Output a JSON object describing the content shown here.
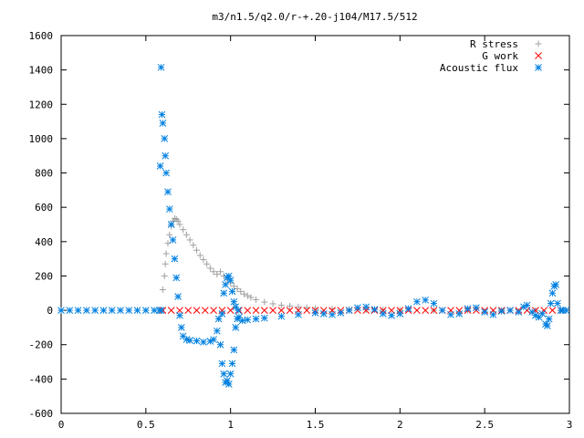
{
  "chart_data": {
    "type": "scatter",
    "title": "m3/n1.5/q2.0/r-+.20-j104/M17.5/512",
    "xlabel": "",
    "ylabel": "",
    "xlim": [
      0,
      3
    ],
    "ylim": [
      -600,
      1600
    ],
    "x_ticks": [
      "0",
      "0.5",
      "1",
      "1.5",
      "2",
      "2.5",
      "3"
    ],
    "x_tick_values": [
      0,
      0.5,
      1,
      1.5,
      2,
      2.5,
      3
    ],
    "y_ticks": [
      "-600",
      "-400",
      "-200",
      "0",
      "200",
      "400",
      "600",
      "800",
      "1000",
      "1200",
      "1400",
      "1600"
    ],
    "y_tick_values": [
      -600,
      -400,
      -200,
      0,
      200,
      400,
      600,
      800,
      1000,
      1200,
      1400,
      1600
    ],
    "grid": false,
    "legend_position": "top-right",
    "series": [
      {
        "name": "R stress",
        "marker": "plus",
        "color": "#a0a0a0",
        "points": [
          [
            0.6,
            120
          ],
          [
            0.61,
            200
          ],
          [
            0.615,
            270
          ],
          [
            0.62,
            330
          ],
          [
            0.63,
            390
          ],
          [
            0.64,
            440
          ],
          [
            0.65,
            490
          ],
          [
            0.66,
            520
          ],
          [
            0.67,
            535
          ],
          [
            0.68,
            530
          ],
          [
            0.69,
            520
          ],
          [
            0.7,
            500
          ],
          [
            0.72,
            470
          ],
          [
            0.74,
            440
          ],
          [
            0.76,
            410
          ],
          [
            0.78,
            380
          ],
          [
            0.8,
            350
          ],
          [
            0.82,
            320
          ],
          [
            0.84,
            295
          ],
          [
            0.86,
            270
          ],
          [
            0.88,
            245
          ],
          [
            0.9,
            225
          ],
          [
            0.92,
            210
          ],
          [
            0.94,
            225
          ],
          [
            0.96,
            200
          ],
          [
            0.98,
            180
          ],
          [
            1.0,
            160
          ],
          [
            1.02,
            140
          ],
          [
            1.04,
            125
          ],
          [
            1.06,
            110
          ],
          [
            1.08,
            95
          ],
          [
            1.1,
            85
          ],
          [
            1.12,
            75
          ],
          [
            1.15,
            62
          ],
          [
            1.2,
            48
          ],
          [
            1.25,
            38
          ],
          [
            1.3,
            30
          ],
          [
            1.35,
            25
          ],
          [
            1.4,
            20
          ],
          [
            1.45,
            16
          ],
          [
            1.5,
            12
          ],
          [
            1.6,
            8
          ],
          [
            1.7,
            5
          ],
          [
            1.8,
            3
          ],
          [
            1.9,
            2
          ],
          [
            2.0,
            1
          ],
          [
            2.2,
            0
          ],
          [
            2.4,
            0
          ],
          [
            2.6,
            0
          ],
          [
            2.8,
            0
          ],
          [
            2.95,
            0
          ]
        ]
      },
      {
        "name": "G work",
        "marker": "cross",
        "color": "#ff0000",
        "points": [
          [
            0.6,
            0
          ],
          [
            0.65,
            0
          ],
          [
            0.7,
            0
          ],
          [
            0.75,
            0
          ],
          [
            0.8,
            0
          ],
          [
            0.85,
            0
          ],
          [
            0.9,
            0
          ],
          [
            0.95,
            0
          ],
          [
            1.0,
            0
          ],
          [
            1.05,
            0
          ],
          [
            1.1,
            0
          ],
          [
            1.15,
            0
          ],
          [
            1.2,
            0
          ],
          [
            1.25,
            0
          ],
          [
            1.3,
            0
          ],
          [
            1.35,
            0
          ],
          [
            1.4,
            0
          ],
          [
            1.45,
            0
          ],
          [
            1.5,
            0
          ],
          [
            1.55,
            0
          ],
          [
            1.6,
            0
          ],
          [
            1.65,
            0
          ],
          [
            1.7,
            0
          ],
          [
            1.75,
            0
          ],
          [
            1.8,
            0
          ],
          [
            1.85,
            0
          ],
          [
            1.9,
            0
          ],
          [
            1.95,
            0
          ],
          [
            2.0,
            0
          ],
          [
            2.05,
            0
          ],
          [
            2.1,
            0
          ],
          [
            2.15,
            0
          ],
          [
            2.2,
            0
          ],
          [
            2.25,
            0
          ],
          [
            2.3,
            0
          ],
          [
            2.35,
            0
          ],
          [
            2.4,
            0
          ],
          [
            2.45,
            0
          ],
          [
            2.5,
            0
          ],
          [
            2.55,
            0
          ],
          [
            2.6,
            0
          ],
          [
            2.65,
            0
          ],
          [
            2.7,
            0
          ],
          [
            2.75,
            0
          ],
          [
            2.8,
            0
          ],
          [
            2.85,
            0
          ],
          [
            2.9,
            0
          ],
          [
            2.95,
            0
          ]
        ]
      },
      {
        "name": "Acoustic flux",
        "marker": "star",
        "color": "#0080e0",
        "points": [
          [
            0.0,
            0
          ],
          [
            0.05,
            0
          ],
          [
            0.1,
            0
          ],
          [
            0.15,
            0
          ],
          [
            0.2,
            0
          ],
          [
            0.25,
            0
          ],
          [
            0.3,
            0
          ],
          [
            0.35,
            0
          ],
          [
            0.4,
            0
          ],
          [
            0.45,
            0
          ],
          [
            0.5,
            0
          ],
          [
            0.55,
            0
          ],
          [
            0.58,
            0
          ],
          [
            0.59,
            0
          ],
          [
            0.585,
            840
          ],
          [
            0.59,
            1415
          ],
          [
            0.595,
            1140
          ],
          [
            0.6,
            1090
          ],
          [
            0.61,
            1000
          ],
          [
            0.615,
            900
          ],
          [
            0.62,
            800
          ],
          [
            0.63,
            690
          ],
          [
            0.64,
            590
          ],
          [
            0.65,
            500
          ],
          [
            0.66,
            410
          ],
          [
            0.67,
            300
          ],
          [
            0.68,
            190
          ],
          [
            0.69,
            80
          ],
          [
            0.7,
            -30
          ],
          [
            0.71,
            -100
          ],
          [
            0.72,
            -150
          ],
          [
            0.74,
            -170
          ],
          [
            0.76,
            -175
          ],
          [
            0.8,
            -178
          ],
          [
            0.84,
            -185
          ],
          [
            0.88,
            -180
          ],
          [
            0.9,
            -170
          ],
          [
            0.92,
            -120
          ],
          [
            0.93,
            -50
          ],
          [
            0.94,
            -200
          ],
          [
            0.95,
            -310
          ],
          [
            0.96,
            -370
          ],
          [
            0.97,
            -420
          ],
          [
            0.98,
            -410
          ],
          [
            0.99,
            -430
          ],
          [
            1.0,
            -370
          ],
          [
            1.01,
            -310
          ],
          [
            1.02,
            -230
          ],
          [
            1.03,
            -100
          ],
          [
            1.04,
            -50
          ],
          [
            1.045,
            0
          ],
          [
            0.95,
            -20
          ],
          [
            0.96,
            100
          ],
          [
            0.97,
            150
          ],
          [
            0.98,
            190
          ],
          [
            0.99,
            200
          ],
          [
            1.0,
            175
          ],
          [
            1.01,
            110
          ],
          [
            1.02,
            50
          ],
          [
            1.03,
            20
          ],
          [
            1.05,
            -40
          ],
          [
            1.07,
            -60
          ],
          [
            1.1,
            -55
          ],
          [
            1.15,
            -50
          ],
          [
            1.2,
            -45
          ],
          [
            1.3,
            -35
          ],
          [
            1.4,
            -25
          ],
          [
            1.5,
            -15
          ],
          [
            1.55,
            -20
          ],
          [
            1.6,
            -25
          ],
          [
            1.65,
            -15
          ],
          [
            1.7,
            0
          ],
          [
            1.75,
            15
          ],
          [
            1.8,
            20
          ],
          [
            1.85,
            5
          ],
          [
            1.9,
            -20
          ],
          [
            1.95,
            -30
          ],
          [
            2.0,
            -20
          ],
          [
            2.05,
            10
          ],
          [
            2.1,
            50
          ],
          [
            2.15,
            60
          ],
          [
            2.2,
            40
          ],
          [
            2.25,
            0
          ],
          [
            2.3,
            -25
          ],
          [
            2.35,
            -20
          ],
          [
            2.4,
            10
          ],
          [
            2.45,
            15
          ],
          [
            2.5,
            -10
          ],
          [
            2.55,
            -25
          ],
          [
            2.6,
            -5
          ],
          [
            2.65,
            0
          ],
          [
            2.7,
            -10
          ],
          [
            2.73,
            20
          ],
          [
            2.75,
            30
          ],
          [
            2.78,
            -10
          ],
          [
            2.8,
            -30
          ],
          [
            2.82,
            -40
          ],
          [
            2.84,
            -20
          ],
          [
            2.86,
            -80
          ],
          [
            2.87,
            -90
          ],
          [
            2.88,
            -50
          ],
          [
            2.89,
            40
          ],
          [
            2.9,
            100
          ],
          [
            2.91,
            140
          ],
          [
            2.92,
            150
          ],
          [
            2.93,
            40
          ],
          [
            2.95,
            0
          ],
          [
            2.96,
            0
          ],
          [
            2.98,
            0
          ]
        ]
      }
    ]
  }
}
